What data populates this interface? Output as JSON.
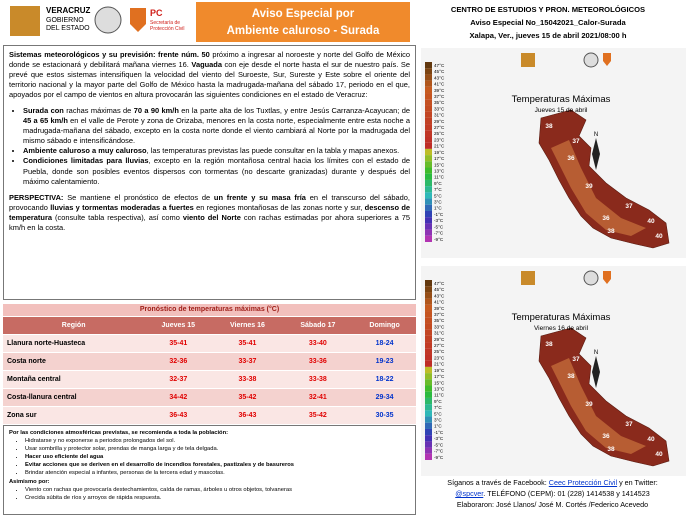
{
  "header": {
    "logo_left": [
      "VERACRUZ",
      "GOBIERNO",
      "DEL ESTADO"
    ],
    "logo_right": [
      "PC",
      "Secretaría de",
      "Protección Civil"
    ],
    "title": [
      "Aviso Especial por",
      "Ambiente caluroso - Surada"
    ],
    "info": [
      "CENTRO DE ESTUDIOS Y PRON. METEOROLÓGICOS",
      "Aviso Especial No_15042021_Calor-Surada",
      "Xalapa, Ver., jueves 15 de abril 2021/08:00 h"
    ]
  },
  "summary": {
    "intro": [
      {
        "t": "Sistemas meteorológicos y su previsión: frente núm. 50",
        "b": true
      },
      {
        "t": " próximo a ingresar al noroeste y norte del Golfo de México donde se estacionará y debilitará mañana viernes 16. "
      },
      {
        "t": "Vaguada",
        "b": true
      },
      {
        "t": " con eje desde el norte hasta el sur de nuestro país. Se prevé que estos sistemas intensifiquen la velocidad del viento del Suroeste, Sur, Sureste y Este sobre el oriente del territorio nacional y la mayor parte del Golfo de México hasta la madrugada-mañana del sábado 17, periodo en el que, apoyados por el campo de vientos en altura provocarán las siguientes condiciones en el estado de Veracruz:"
      }
    ],
    "bullets": [
      [
        {
          "t": "Surada con",
          "b": true
        },
        {
          "t": " rachas máximas de "
        },
        {
          "t": "70 a 90 km/h",
          "b": true
        },
        {
          "t": " en la parte alta de los Tuxtlas, y entre Jesús Carranza-Acayucan; de "
        },
        {
          "t": "45 a 65 km/h",
          "b": true
        },
        {
          "t": " en el valle de Perote y zona de Orizaba, menores en la costa norte, especialmente entre esta noche a madrugada-mañana del sábado, excepto en la costa norte donde el viento cambiará al Norte por la madrugada del mismo sábado e intensificándose."
        }
      ],
      [
        {
          "t": "Ambiente caluroso a muy caluroso",
          "b": true
        },
        {
          "t": ", las temperaturas previstas las puede consultar en la tabla y mapas anexos."
        }
      ],
      [
        {
          "t": "Condiciones limitadas para lluvias",
          "b": true
        },
        {
          "t": ", excepto en la región montañosa central hacia los límites con el estado de Puebla, donde son posibles eventos dispersos con tormentas (no descarte granizadas) durante y después del máximo calentamiento."
        }
      ]
    ],
    "perspective": [
      {
        "t": "PERSPECTIVA:",
        "b": true
      },
      {
        "t": " Se mantiene el pronóstico de efectos de "
      },
      {
        "t": "un frente y su masa fría",
        "b": true
      },
      {
        "t": " en el transcurso del sábado, provocando "
      },
      {
        "t": "lluvias y tormentas moderadas a fuertes",
        "b": true
      },
      {
        "t": " en regiones montañosas de las zonas norte y sur, "
      },
      {
        "t": "descenso de temperatura",
        "b": true
      },
      {
        "t": " (consulte tabla respectiva), así como "
      },
      {
        "t": "viento del Norte",
        "b": true
      },
      {
        "t": " con rachas estimadas  por ahora superiores a 75 km/h en la costa."
      }
    ]
  },
  "table": {
    "title": "Pronóstico de temperaturas máximas (°C)",
    "header": [
      "Región",
      "Jueves 15",
      "Viernes 16",
      "Sábado 17",
      "Domingo"
    ],
    "rows": [
      [
        "Llanura norte-Huasteca",
        "35-41",
        "35-41",
        "33-40",
        "18-24"
      ],
      [
        "Costa norte",
        "32-36",
        "33-37",
        "33-36",
        "19-23"
      ],
      [
        "Montaña central",
        "32-37",
        "33-38",
        "33-38",
        "18-22"
      ],
      [
        "Costa-llanura central",
        "34-42",
        "35-42",
        "32-41",
        "29-34"
      ],
      [
        "Zona sur",
        "36-43",
        "36-43",
        "35-42",
        "30-35"
      ]
    ]
  },
  "recommendations": {
    "title": "Por las condiciones atmosféricas previstas, se recomienda a toda la población:",
    "items": [
      {
        "t": "Hidratarse y no exponerse a periodos prolongados del sol."
      },
      {
        "t": "Usar sombrilla y protector solar, prendas de manga larga y de tela delgada."
      },
      {
        "t": "Hacer uso eficiente del agua",
        "b": true
      },
      {
        "t": "Evitar acciones que se deriven en el desarrollo de incendios forestales, pastizales y de basureros",
        "b": true
      },
      {
        "t": "Brindar atención especial a infantes, personas de la tercera edad y mascotas."
      }
    ],
    "also_title": "Asimismo por:",
    "also_items": [
      "Viento con rachas que provocaría destechamientos, caída de ramas, árboles u otros objetos, tolvaneras",
      "Crecida súbita de ríos y arroyos de rápida respuesta."
    ]
  },
  "maps": [
    {
      "title": "Temperaturas Máximas",
      "subtitle": "Jueves 15 de abril",
      "compass": "N",
      "scale": [
        "47°C",
        "45°C",
        "43°C",
        "41°C",
        "39°C",
        "37°C",
        "35°C",
        "33°C",
        "31°C",
        "29°C",
        "27°C",
        "25°C",
        "23°C",
        "21°C",
        "19°C",
        "17°C",
        "15°C",
        "13°C",
        "11°C",
        "9°C",
        "7°C",
        "5°C",
        "3°C",
        "1°C",
        "-1°C",
        "-3°C",
        "-5°C",
        "-7°C",
        "-9°C"
      ],
      "labels": [
        "38",
        "37",
        "36",
        "39",
        "40",
        "37",
        "36",
        "38",
        "40"
      ]
    },
    {
      "title": "Temperaturas Máximas",
      "subtitle": "Viernes 16 de abril",
      "compass": "N",
      "scale": [
        "47°C",
        "45°C",
        "43°C",
        "41°C",
        "39°C",
        "37°C",
        "35°C",
        "33°C",
        "31°C",
        "29°C",
        "27°C",
        "25°C",
        "23°C",
        "21°C",
        "19°C",
        "17°C",
        "15°C",
        "13°C",
        "11°C",
        "9°C",
        "7°C",
        "5°C",
        "3°C",
        "1°C",
        "-1°C",
        "-3°C",
        "-5°C",
        "-7°C",
        "-9°C"
      ],
      "labels": [
        "38",
        "37",
        "38",
        "39",
        "40",
        "37",
        "36",
        "38",
        "40"
      ]
    }
  ],
  "footer": {
    "line1": [
      {
        "t": "Síganos a través de Facebook: "
      },
      {
        "t": "Ceec Protección Civil",
        "link": true
      },
      {
        "t": " y en Twitter:"
      }
    ],
    "line2": [
      {
        "t": "@spcver",
        "link": true
      },
      {
        "t": ".  TELÉFONO (CEPM):  01 (228) 1414538 y 1414523"
      }
    ],
    "line3": "Elaboraron: José Llanos/ José M. Cortés /Federico Acevedo"
  }
}
